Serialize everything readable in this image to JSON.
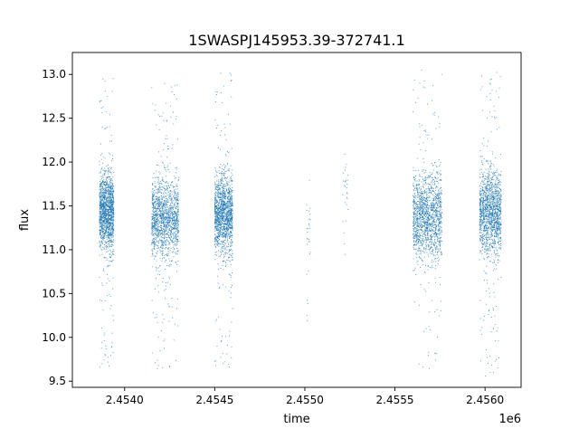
{
  "chart_data": {
    "type": "scatter",
    "title": "1SWASPJ145953.39-372741.1",
    "xlabel": "time",
    "ylabel": "flux",
    "x_offset_label": "1e6",
    "xlim": [
      2.45371,
      2.4562
    ],
    "ylim": [
      9.43,
      13.25
    ],
    "xticks": [
      2.454,
      2.4545,
      2.455,
      2.4555,
      2.456
    ],
    "xtick_labels": [
      "2.4540",
      "2.4545",
      "2.4550",
      "2.4555",
      "2.4560"
    ],
    "yticks": [
      9.5,
      10.0,
      10.5,
      11.0,
      11.5,
      12.0,
      12.5,
      13.0
    ],
    "ytick_labels": [
      "9.5",
      "10.0",
      "10.5",
      "11.0",
      "11.5",
      "12.0",
      "12.5",
      "13.0"
    ],
    "grid": false,
    "point_color": "#1f77b4",
    "series": [
      {
        "clusters": [
          {
            "x_range": [
              2.45386,
              2.45394
            ],
            "y_core": [
              11.0,
              11.85
            ],
            "y_tail": [
              9.65,
              13.0
            ],
            "density": "high"
          },
          {
            "x_range": [
              2.45415,
              2.4543
            ],
            "y_core": [
              10.9,
              11.8
            ],
            "y_tail": [
              9.6,
              12.9
            ],
            "density": "high"
          },
          {
            "x_range": [
              2.4545,
              2.4546
            ],
            "y_core": [
              10.95,
              11.85
            ],
            "y_tail": [
              9.65,
              13.05
            ],
            "density": "high"
          },
          {
            "x_range": [
              2.45501,
              2.45503
            ],
            "y_core": [
              10.9,
              11.65
            ],
            "y_tail": [
              9.8,
              11.65
            ],
            "density": "sparse"
          },
          {
            "x_range": [
              2.45521,
              2.45524
            ],
            "y_core": [
              11.2,
              12.15
            ],
            "y_tail": [
              10.9,
              12.5
            ],
            "density": "sparse"
          },
          {
            "x_range": [
              2.4556,
              2.45576
            ],
            "y_core": [
              10.9,
              11.85
            ],
            "y_tail": [
              9.6,
              13.05
            ],
            "density": "high"
          },
          {
            "x_range": [
              2.45597,
              2.45609
            ],
            "y_core": [
              10.95,
              11.9
            ],
            "y_tail": [
              9.55,
              13.05
            ],
            "density": "high"
          }
        ]
      }
    ]
  }
}
